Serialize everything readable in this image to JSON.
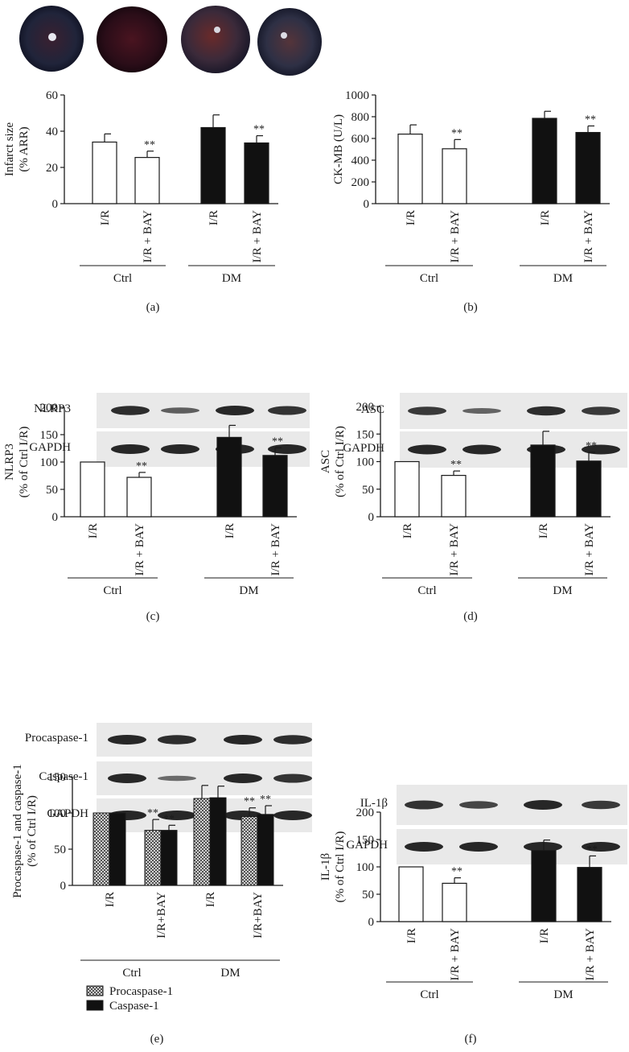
{
  "chart_data": [
    {
      "id": "a",
      "type": "bar",
      "panel_label": "(a)",
      "ylabel": [
        "Infarct size",
        "(% ARR)"
      ],
      "ylim": [
        0,
        60
      ],
      "yticks": [
        0,
        20,
        40,
        60
      ],
      "groups": [
        "Ctrl",
        "DM"
      ],
      "categories": [
        "I/R",
        "I/R + BAY",
        "I/R",
        "I/R + BAY"
      ],
      "values": [
        34,
        25.5,
        42,
        33.5
      ],
      "errors": [
        4.5,
        3.5,
        7,
        4
      ],
      "fills": [
        "white",
        "white",
        "black",
        "black"
      ],
      "significance": [
        "",
        "**",
        "",
        "**"
      ]
    },
    {
      "id": "b",
      "type": "bar",
      "panel_label": "(b)",
      "ylabel": [
        "CK-MB (U/L)"
      ],
      "ylim": [
        0,
        1000
      ],
      "yticks": [
        0,
        200,
        400,
        600,
        800,
        1000
      ],
      "groups": [
        "Ctrl",
        "DM"
      ],
      "categories": [
        "I/R",
        "I/R + BAY",
        "I/R",
        "I/R + BAY"
      ],
      "values": [
        640,
        505,
        785,
        655
      ],
      "errors": [
        85,
        85,
        65,
        60
      ],
      "fills": [
        "white",
        "white",
        "black",
        "black"
      ],
      "significance": [
        "",
        "**",
        "",
        "**"
      ]
    },
    {
      "id": "c",
      "type": "bar",
      "panel_label": "(c)",
      "blot_labels": [
        "NLRP3",
        "GAPDH"
      ],
      "ylabel": [
        "NLRP3",
        "(% of Ctrl I/R)"
      ],
      "ylim": [
        0,
        200
      ],
      "yticks": [
        0,
        50,
        100,
        150,
        200
      ],
      "groups": [
        "Ctrl",
        "DM"
      ],
      "categories": [
        "I/R",
        "I/R + BAY",
        "I/R",
        "I/R + BAY"
      ],
      "values": [
        100,
        72,
        145,
        112
      ],
      "errors": [
        0,
        9,
        22,
        14
      ],
      "fills": [
        "white",
        "white",
        "black",
        "black"
      ],
      "significance": [
        "",
        "**",
        "",
        "**"
      ]
    },
    {
      "id": "d",
      "type": "bar",
      "panel_label": "(d)",
      "blot_labels": [
        "ASC",
        "GAPDH"
      ],
      "ylabel": [
        "ASC",
        "(% of Ctrl I/R)"
      ],
      "ylim": [
        0,
        200
      ],
      "yticks": [
        0,
        50,
        100,
        150,
        200
      ],
      "groups": [
        "Ctrl",
        "DM"
      ],
      "categories": [
        "I/R",
        "I/R + BAY",
        "I/R",
        "I/R + BAY"
      ],
      "values": [
        100,
        75,
        130,
        101
      ],
      "errors": [
        0,
        8,
        25,
        16
      ],
      "fills": [
        "white",
        "white",
        "black",
        "black"
      ],
      "significance": [
        "",
        "**",
        "",
        "**"
      ]
    },
    {
      "id": "e",
      "type": "bar",
      "panel_label": "(e)",
      "blot_labels": [
        "Procaspase-1",
        "Caspase-1",
        "GAPDH"
      ],
      "ylabel": [
        "Procaspase-1 and caspase-1",
        "(% of Ctrl I/R)"
      ],
      "ylim": [
        0,
        150
      ],
      "yticks": [
        0,
        50,
        100,
        150
      ],
      "groups": [
        "Ctrl",
        "DM"
      ],
      "categories": [
        "I/R",
        "I/R+BAY",
        "I/R",
        "I/R+BAY"
      ],
      "series": [
        {
          "name": "Procaspase-1",
          "values": [
            100,
            76,
            120,
            95
          ],
          "errors": [
            0,
            15,
            18,
            12
          ],
          "significance": [
            "",
            "**",
            "",
            "**"
          ]
        },
        {
          "name": "Caspase-1",
          "values": [
            100,
            76,
            121,
            98
          ],
          "errors": [
            0,
            7,
            16,
            12
          ],
          "significance": [
            "",
            "**",
            "",
            "**"
          ]
        }
      ],
      "legend": [
        "Procaspase-1",
        "Caspase-1"
      ],
      "legend_position": "bottom-left"
    },
    {
      "id": "f",
      "type": "bar",
      "panel_label": "(f)",
      "blot_labels": [
        "IL-1β",
        "GAPDH"
      ],
      "ylabel": [
        "IL-1β",
        "(% of Ctrl I/R)"
      ],
      "ylim": [
        0,
        200
      ],
      "yticks": [
        0,
        50,
        100,
        150,
        200
      ],
      "groups": [
        "Ctrl",
        "DM"
      ],
      "categories": [
        "I/R",
        "I/R + BAY",
        "I/R",
        "I/R + BAY"
      ],
      "values": [
        100,
        70,
        130,
        99
      ],
      "errors": [
        0,
        10,
        19,
        21
      ],
      "fills": [
        "white",
        "white",
        "black",
        "black"
      ],
      "significance": [
        "",
        "**",
        "",
        "**"
      ]
    }
  ],
  "colors": {
    "ink": "#1a1a1a",
    "bar_dark": "#111111",
    "bar_light": "#ffffff",
    "blot_bg": "#e9e9e9",
    "band": "#1c1c1c"
  }
}
